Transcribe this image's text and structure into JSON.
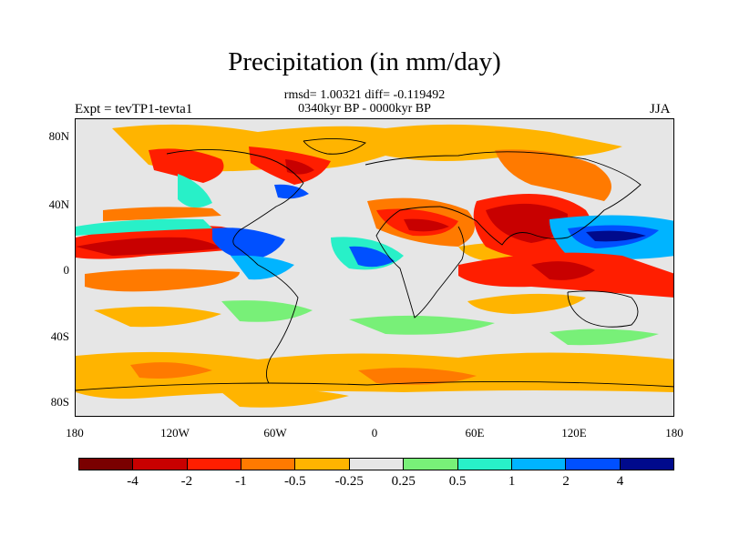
{
  "title": "Precipitation (in mm/day)",
  "stats_line": "rmsd= 1.00321 diff= -0.119492",
  "period_line": "0340kyr BP - 0000kyr BP",
  "experiment": "Expt = tevTP1-tevta1",
  "season": "JJA",
  "lat_labels": [
    "80N",
    "40N",
    "0",
    "40S",
    "80S"
  ],
  "lon_labels": [
    "180",
    "120W",
    "60W",
    "0",
    "60E",
    "120E",
    "180"
  ],
  "colorbar": {
    "colors": [
      "#7a0000",
      "#c80000",
      "#ff1e00",
      "#ff7a00",
      "#ffb400",
      "#e6e6e6",
      "#78f078",
      "#28f0c8",
      "#00b4ff",
      "#0050ff",
      "#000a8c"
    ],
    "labels": [
      "-4",
      "-2",
      "-1",
      "-0.5",
      "-0.25",
      "0.25",
      "0.5",
      "1",
      "2",
      "4"
    ]
  }
}
